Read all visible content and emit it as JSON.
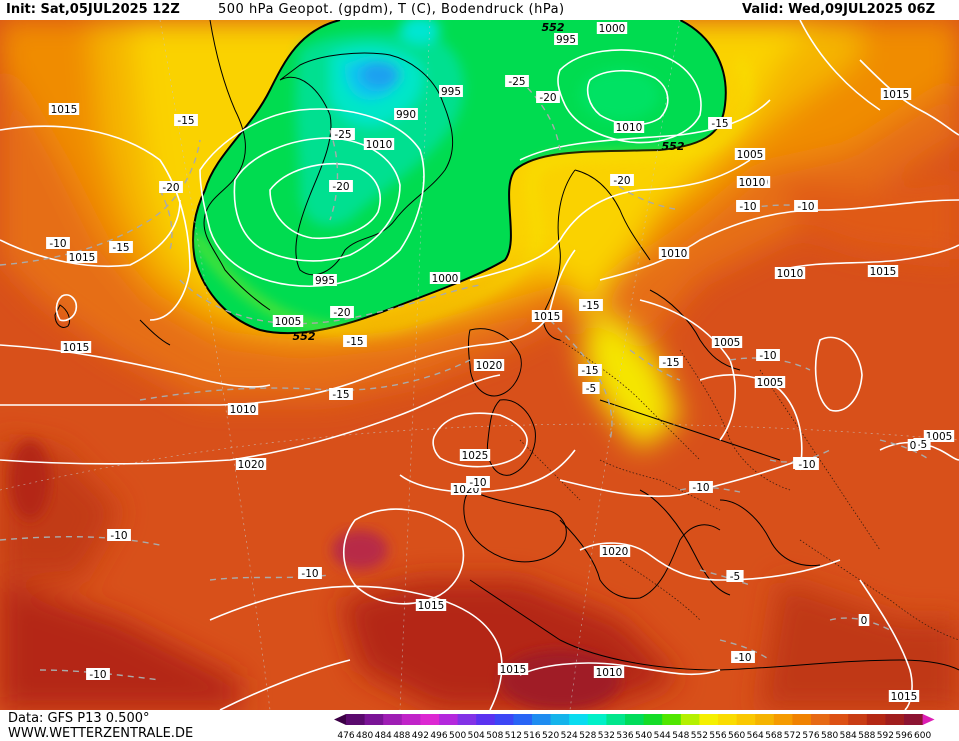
{
  "header": {
    "init": "Init: Sat,05JUL2025 12Z",
    "title": "500 hPa Geopot. (gpdm), T (C), Bodendruck (hPa)",
    "valid": "Valid: Wed,09JUL2025 06Z"
  },
  "footer": {
    "data_source": "Data: GFS P13 0.500°",
    "website": "WWW.WETTERZENTRALE.DE"
  },
  "legend": {
    "values": [
      "476",
      "480",
      "484",
      "488",
      "492",
      "496",
      "500",
      "504",
      "508",
      "512",
      "516",
      "520",
      "524",
      "528",
      "532",
      "536",
      "540",
      "544",
      "548",
      "552",
      "556",
      "560",
      "564",
      "568",
      "572",
      "576",
      "580",
      "584",
      "588",
      "592",
      "596",
      "600"
    ],
    "colors": [
      "#3c0046",
      "#5a0a6e",
      "#7a1496",
      "#9e1eb4",
      "#c023c8",
      "#dc28d2",
      "#b428dc",
      "#8232e6",
      "#5a32f0",
      "#3c46f5",
      "#2864f5",
      "#1e8cf0",
      "#14b4eb",
      "#0adcf0",
      "#00f0c8",
      "#00e68c",
      "#00dc5a",
      "#14dc28",
      "#50e600",
      "#b4f000",
      "#f5f000",
      "#fadc00",
      "#fac800",
      "#f5b400",
      "#f59b00",
      "#f08200",
      "#e66914",
      "#dc5014",
      "#c83c14",
      "#b42814",
      "#a01e1e",
      "#8c1432",
      "#dc1eb4"
    ]
  },
  "pressure_labels": [
    "1000",
    "995",
    "995",
    "990",
    "1015",
    "1005",
    "1010",
    "1015",
    "1015",
    "1015",
    "1010",
    "1015",
    "995",
    "1000",
    "1005",
    "1015",
    "1020",
    "1010",
    "1025",
    "1020",
    "1020",
    "1010",
    "1005",
    "1005",
    "1015",
    "1015",
    "1020",
    "1005",
    "1015",
    "1010",
    "1010",
    "1010",
    "1010"
  ],
  "temperature_labels": [
    "-15",
    "-25",
    "-25",
    "-20",
    "-20",
    "-15",
    "-20",
    "-10",
    "-15",
    "-20",
    "-15",
    "-20",
    "-15",
    "-10",
    "-15",
    "-15",
    "-15",
    "-10",
    "-10",
    "-10",
    "-10",
    "-10",
    "-10",
    "-10",
    "-10",
    "-10",
    "-5",
    "-5",
    "-10",
    "-5",
    "0",
    "0"
  ],
  "geopotential_labels": [
    "552",
    "552",
    "552"
  ]
}
